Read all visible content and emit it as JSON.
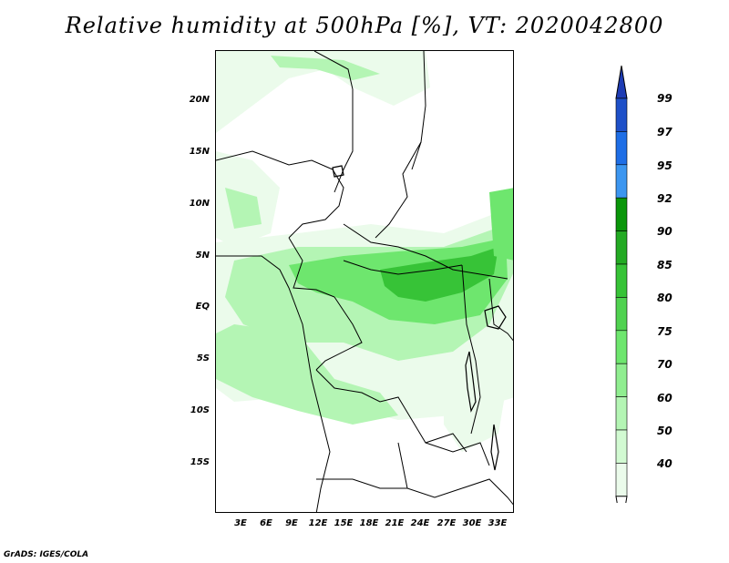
{
  "title": "Relative humidity at 500hPa [%], VT: 2020042800",
  "credit": "GrADS: IGES/COLA",
  "lat_ticks": [
    "20N",
    "15N",
    "10N",
    "5N",
    "EQ",
    "5S",
    "10S",
    "15S"
  ],
  "lon_ticks": [
    "3E",
    "6E",
    "9E",
    "12E",
    "15E",
    "18E",
    "21E",
    "24E",
    "27E",
    "30E",
    "33E"
  ],
  "colorbar": {
    "levels": [
      "99",
      "97",
      "95",
      "92",
      "90",
      "85",
      "80",
      "75",
      "70",
      "60",
      "50",
      "40"
    ],
    "colors": [
      "#1e50c8",
      "#1e6ee6",
      "#3c96f0",
      "#0a960a",
      "#23aa23",
      "#37c337",
      "#50d250",
      "#6ee66e",
      "#90ee90",
      "#b4f5b4",
      "#d2fad2",
      "#ebfbeb"
    ],
    "top_arrow_color": "#1e3cb4",
    "bottom_arrow_color": "#ffffff"
  },
  "colors": {
    "humid_light": "#ebfbeb",
    "humid_mid": "#b4f5b4",
    "humid_high": "#6ee66e",
    "humid_peak": "#37c337"
  }
}
